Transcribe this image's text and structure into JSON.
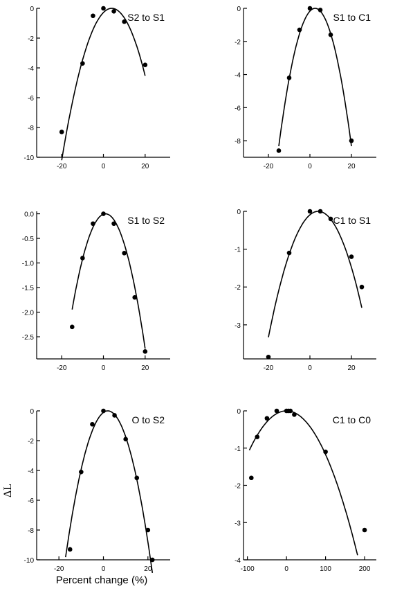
{
  "figure": {
    "xlabel": "Percent change (%)",
    "ylabel": "ΔL"
  },
  "chart_data": [
    {
      "type": "scatter",
      "title": "S2 to S1",
      "xlim": [
        -32,
        32
      ],
      "ylim": [
        -10,
        0
      ],
      "xticks": [
        -20,
        0,
        20
      ],
      "yticks": [
        0,
        -2,
        -4,
        -6,
        -8,
        -10
      ],
      "ytick_labels": [
        "0",
        "-2",
        "-4",
        "-6",
        "-8",
        "-10"
      ],
      "x": [
        -20,
        -10,
        -5,
        0,
        5,
        10,
        20
      ],
      "y": [
        -8.3,
        -3.7,
        -0.5,
        0,
        -0.2,
        -0.9,
        -3.8
      ],
      "curve": {
        "peak_x": 4,
        "a": 0.0177,
        "x_range": [
          -20,
          20
        ]
      }
    },
    {
      "type": "scatter",
      "title": "S1 to C1",
      "xlim": [
        -32,
        32
      ],
      "ylim": [
        -9,
        0
      ],
      "xticks": [
        -20,
        0,
        20
      ],
      "yticks": [
        0,
        -2,
        -4,
        -6,
        -8
      ],
      "ytick_labels": [
        "0",
        "-2",
        "-4",
        "-6",
        "-8"
      ],
      "x": [
        -15,
        -10,
        -5,
        0,
        5,
        10,
        20
      ],
      "y": [
        -8.6,
        -4.2,
        -1.3,
        0,
        -0.1,
        -1.6,
        -8.0
      ],
      "curve": {
        "peak_x": 2.5,
        "a": 0.0272,
        "x_range": [
          -15,
          20
        ]
      }
    },
    {
      "type": "scatter",
      "title": "S1 to S2",
      "xlim": [
        -32,
        32
      ],
      "ylim": [
        -2.95,
        0.05
      ],
      "xticks": [
        -20,
        0,
        20
      ],
      "yticks": [
        0,
        -0.5,
        -1,
        -1.5,
        -2,
        -2.5
      ],
      "ytick_labels": [
        "0.0",
        "-0.5",
        "-1.0",
        "-1.5",
        "-2.0",
        "-2.5"
      ],
      "x": [
        -15,
        -10,
        -5,
        0,
        5,
        10,
        15,
        20
      ],
      "y": [
        -2.3,
        -0.9,
        -0.2,
        0,
        -0.2,
        -0.8,
        -1.7,
        -2.8
      ],
      "curve": {
        "peak_x": 1,
        "a": 0.0076,
        "x_range": [
          -15,
          20
        ]
      }
    },
    {
      "type": "scatter",
      "title": "C1 to S1",
      "xlim": [
        -32,
        32
      ],
      "ylim": [
        -3.9,
        0
      ],
      "xticks": [
        -20,
        0,
        20
      ],
      "yticks": [
        0,
        -1,
        -2,
        -3
      ],
      "ytick_labels": [
        "0",
        "-1",
        "-2",
        "-3"
      ],
      "x": [
        -20,
        -10,
        0,
        5,
        10,
        20,
        25
      ],
      "y": [
        -3.85,
        -1.1,
        0,
        0,
        -0.2,
        -1.2,
        -2.0
      ],
      "curve": {
        "peak_x": 4,
        "a": 0.00578,
        "x_range": [
          -20,
          25
        ]
      }
    },
    {
      "type": "scatter",
      "title": "O to S2",
      "xlim": [
        -30,
        30
      ],
      "ylim": [
        -10,
        0
      ],
      "xticks": [
        -20,
        0,
        20
      ],
      "yticks": [
        0,
        -2,
        -4,
        -6,
        -8,
        -10
      ],
      "ytick_labels": [
        "0",
        "-2",
        "-4",
        "-6",
        "-8",
        "-10"
      ],
      "x": [
        -15,
        -10,
        -5,
        0,
        5,
        10,
        15,
        20,
        22
      ],
      "y": [
        -9.3,
        -4.1,
        -0.9,
        0,
        -0.3,
        -1.9,
        -4.5,
        -8.0,
        -10.0
      ],
      "curve": {
        "peak_x": 2,
        "a": 0.0272,
        "x_range": [
          -17,
          22
        ]
      }
    },
    {
      "type": "scatter",
      "title": "C1 to C0",
      "xlim": [
        -110,
        230
      ],
      "ylim": [
        -4,
        0
      ],
      "xticks": [
        -100,
        0,
        100,
        200
      ],
      "yticks": [
        0,
        -1,
        -2,
        -3,
        -4
      ],
      "ytick_labels": [
        "0",
        "-1",
        "-2",
        "-3",
        "-4"
      ],
      "x": [
        -90,
        -75,
        -50,
        -25,
        0,
        5,
        10,
        20,
        100,
        200
      ],
      "y": [
        -1.8,
        -0.7,
        -0.2,
        0,
        0,
        0,
        0,
        -0.1,
        -1.1,
        -3.2
      ],
      "curve": {
        "peak_x": 0,
        "a": 0.000117,
        "x_range": [
          -95,
          182
        ]
      }
    }
  ]
}
